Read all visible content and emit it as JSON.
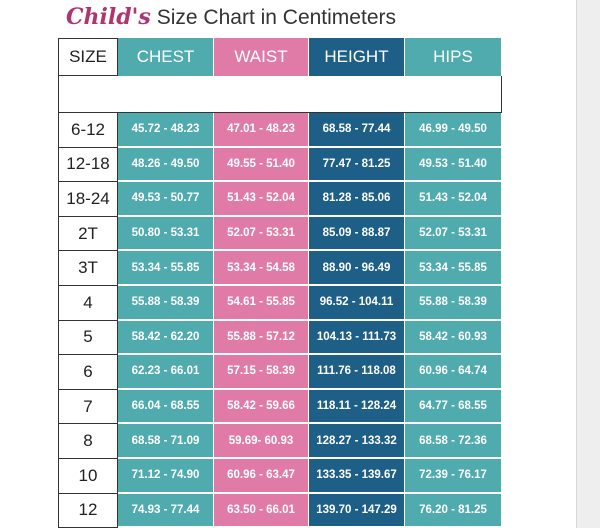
{
  "title": {
    "script": "Child's",
    "main": "Size Chart in Centimeters"
  },
  "table": {
    "header": [
      "SIZE",
      "CHEST",
      "WAIST",
      "HEIGHT",
      "HIPS"
    ],
    "rows": [
      [
        "6-12",
        "45.72 - 48.23",
        "47.01 - 48.23",
        "68.58 - 77.44",
        "46.99 - 49.50"
      ],
      [
        "12-18",
        "48.26 - 49.50",
        "49.55 - 51.40",
        "77.47 - 81.25",
        "49.53 - 51.40"
      ],
      [
        "18-24",
        "49.53 - 50.77",
        "51.43 - 52.04",
        "81.28 - 85.06",
        "51.43 - 52.04"
      ],
      [
        "2T",
        "50.80 - 53.31",
        "52.07 - 53.31",
        "85.09 - 88.87",
        "52.07 - 53.31"
      ],
      [
        "3T",
        "53.34 - 55.85",
        "53.34 - 54.58",
        "88.90 - 96.49",
        "53.34 - 55.85"
      ],
      [
        "4",
        "55.88 - 58.39",
        "54.61 - 55.85",
        "96.52 - 104.11",
        "55.88 - 58.39"
      ],
      [
        "5",
        "58.42 - 62.20",
        "55.88 - 57.12",
        "104.13 - 111.73",
        "58.42 - 60.93"
      ],
      [
        "6",
        "62.23 - 66.01",
        "57.15 - 58.39",
        "111.76 - 118.08",
        "60.96 - 64.74"
      ],
      [
        "7",
        "66.04 - 68.55",
        "58.42 - 59.66",
        "118.11 - 128.24",
        "64.77 - 68.55"
      ],
      [
        "8",
        "68.58 - 71.09",
        "59.69- 60.93",
        "128.27 - 133.32",
        "68.58 - 72.36"
      ],
      [
        "10",
        "71.12 - 74.90",
        "60.96 - 63.47",
        "133.35 - 139.67",
        "72.39 - 76.17"
      ],
      [
        "12",
        "74.93 - 77.44",
        "63.50 - 66.01",
        "139.70 - 147.29",
        "76.20 - 81.25"
      ]
    ]
  }
}
